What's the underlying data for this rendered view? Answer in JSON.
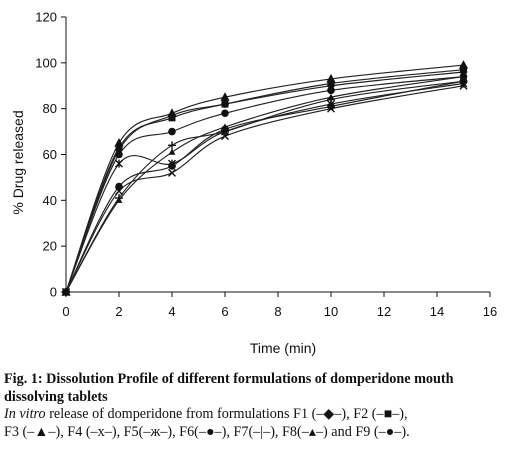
{
  "figure": {
    "caption_title": "Fig. 1: Dissolution Profile of different formulations of domperidone mouth dissolving tablets",
    "caption_italic": "In vitro",
    "caption_line1": " release of domperidone from formulations F1 (–◆–), F2 (–■–),",
    "caption_line2": "F3 (–▲–), F4 (–x–), F5(–ж–), F6(–●–), F7(–|–), F8(–▴–) and F9 (–●–)."
  },
  "chart_data": {
    "type": "line",
    "xlabel": "Time (min)",
    "ylabel": "% Drug released",
    "xlim": [
      0,
      16
    ],
    "ylim": [
      0,
      120
    ],
    "xticks": [
      "0",
      "2",
      "4",
      "6",
      "8",
      "10",
      "12",
      "14",
      "16"
    ],
    "yticks": [
      "0",
      "20",
      "40",
      "60",
      "80",
      "100",
      "120"
    ],
    "grid": false,
    "x": [
      0,
      2,
      4,
      6,
      10,
      15
    ],
    "series": [
      {
        "name": "F1",
        "marker": "diamond",
        "values": [
          0,
          62,
          77,
          82,
          90,
          96
        ]
      },
      {
        "name": "F2",
        "marker": "square",
        "values": [
          0,
          63,
          76,
          82,
          91,
          97
        ]
      },
      {
        "name": "F3",
        "marker": "triangle",
        "values": [
          0,
          65,
          78,
          85,
          93,
          99
        ]
      },
      {
        "name": "F4",
        "marker": "x",
        "values": [
          0,
          44,
          52,
          68,
          80,
          90
        ]
      },
      {
        "name": "F5",
        "marker": "star",
        "values": [
          0,
          56,
          56,
          70,
          82,
          91
        ]
      },
      {
        "name": "F6",
        "marker": "circle",
        "values": [
          0,
          60,
          70,
          78,
          88,
          94
        ]
      },
      {
        "name": "F7",
        "marker": "plus",
        "values": [
          0,
          41,
          64,
          70,
          84,
          92
        ]
      },
      {
        "name": "F8",
        "marker": "smalltriangle",
        "values": [
          0,
          40,
          61,
          72,
          85,
          94
        ]
      },
      {
        "name": "F9",
        "marker": "circle",
        "values": [
          0,
          46,
          55,
          71,
          81,
          92
        ]
      }
    ],
    "colors": {
      "line": "#222222",
      "marker": "#111111",
      "axis": "#111111"
    }
  }
}
